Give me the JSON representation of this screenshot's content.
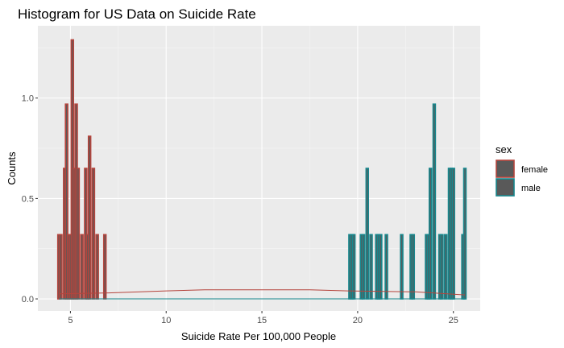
{
  "chart_data": {
    "type": "histogram",
    "title": "Histogram for US Data on Suicide Rate",
    "xlabel": "Suicide Rate Per 100,000 People",
    "ylabel": "Counts",
    "xlim": [
      3.3,
      26.4
    ],
    "ylim": [
      -0.06,
      1.36
    ],
    "x_ticks": [
      5,
      10,
      15,
      20,
      25
    ],
    "y_ticks": [
      0.0,
      0.5,
      1.0
    ],
    "y_tick_labels": [
      "0.0",
      "0.5",
      "1.0"
    ],
    "grid": true,
    "legend": {
      "title": "sex",
      "position": "right",
      "entries": [
        {
          "label": "female",
          "color": "#b5443c"
        },
        {
          "label": "male",
          "color": "#17878d"
        }
      ]
    },
    "bin_width": 0.12,
    "series": [
      {
        "name": "female",
        "color": "#b5443c",
        "bars": [
          {
            "x": 4.4,
            "count": 0.32
          },
          {
            "x": 4.5,
            "count": 0.32
          },
          {
            "x": 4.7,
            "count": 0.65
          },
          {
            "x": 4.8,
            "count": 0.97
          },
          {
            "x": 4.9,
            "count": 0.32
          },
          {
            "x": 5.0,
            "count": 0.32
          },
          {
            "x": 5.1,
            "count": 1.29
          },
          {
            "x": 5.2,
            "count": 0.65
          },
          {
            "x": 5.3,
            "count": 0.97
          },
          {
            "x": 5.4,
            "count": 0.65
          },
          {
            "x": 5.6,
            "count": 0.32
          },
          {
            "x": 5.8,
            "count": 0.65
          },
          {
            "x": 5.9,
            "count": 0.32
          },
          {
            "x": 6.0,
            "count": 0.81
          },
          {
            "x": 6.2,
            "count": 0.65
          },
          {
            "x": 6.4,
            "count": 0.32
          },
          {
            "x": 6.8,
            "count": 0.32
          }
        ],
        "density": [
          {
            "x": 4.4,
            "y": 0.025
          },
          {
            "x": 7.0,
            "y": 0.03
          },
          {
            "x": 10.0,
            "y": 0.04
          },
          {
            "x": 12.0,
            "y": 0.045
          },
          {
            "x": 17.5,
            "y": 0.045
          },
          {
            "x": 19.5,
            "y": 0.04
          },
          {
            "x": 23.0,
            "y": 0.035
          },
          {
            "x": 25.6,
            "y": 0.02
          }
        ]
      },
      {
        "name": "male",
        "color": "#17878d",
        "bars": [
          {
            "x": 19.6,
            "count": 0.32
          },
          {
            "x": 19.7,
            "count": 0.32
          },
          {
            "x": 19.8,
            "count": 0.32
          },
          {
            "x": 20.2,
            "count": 0.32
          },
          {
            "x": 20.3,
            "count": 0.32
          },
          {
            "x": 20.5,
            "count": 0.65
          },
          {
            "x": 20.7,
            "count": 0.32
          },
          {
            "x": 21.0,
            "count": 0.32
          },
          {
            "x": 21.1,
            "count": 0.32
          },
          {
            "x": 21.2,
            "count": 0.32
          },
          {
            "x": 21.5,
            "count": 0.32
          },
          {
            "x": 22.3,
            "count": 0.32
          },
          {
            "x": 22.8,
            "count": 0.32
          },
          {
            "x": 22.9,
            "count": 0.32
          },
          {
            "x": 23.6,
            "count": 0.32
          },
          {
            "x": 23.7,
            "count": 0.32
          },
          {
            "x": 23.8,
            "count": 0.65
          },
          {
            "x": 24.0,
            "count": 0.97
          },
          {
            "x": 24.3,
            "count": 0.32
          },
          {
            "x": 24.4,
            "count": 0.32
          },
          {
            "x": 24.6,
            "count": 0.32
          },
          {
            "x": 24.8,
            "count": 0.65
          },
          {
            "x": 24.9,
            "count": 0.65
          },
          {
            "x": 25.0,
            "count": 0.65
          },
          {
            "x": 25.5,
            "count": 0.32
          },
          {
            "x": 25.6,
            "count": 0.65
          }
        ],
        "density": [
          {
            "x": 4.4,
            "y": 0.0
          },
          {
            "x": 19.5,
            "y": 0.0
          },
          {
            "x": 25.6,
            "y": 0.0
          }
        ]
      }
    ]
  }
}
